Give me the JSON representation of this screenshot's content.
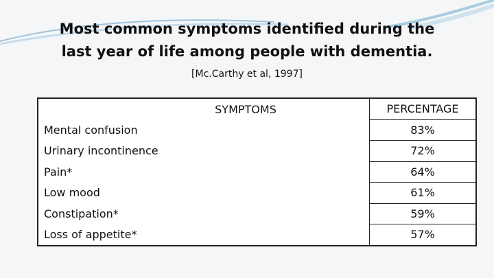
{
  "title": [
    "Most common symptoms identified during the",
    "last year of life among people with dementia."
  ],
  "citation": "[Mc.Carthy et al, 1997]",
  "table": {
    "header": [
      "SYMPTOMS",
      "PERCENTAGE"
    ],
    "rows": [
      [
        "Mental confusion",
        "83%"
      ],
      [
        "Urinary incontinence",
        "72%"
      ],
      [
        "Pain*",
        "64%"
      ],
      [
        "Low mood",
        "61%"
      ],
      [
        "Constipation*",
        "59%"
      ],
      [
        "Loss of appetite*",
        "57%"
      ]
    ]
  }
}
